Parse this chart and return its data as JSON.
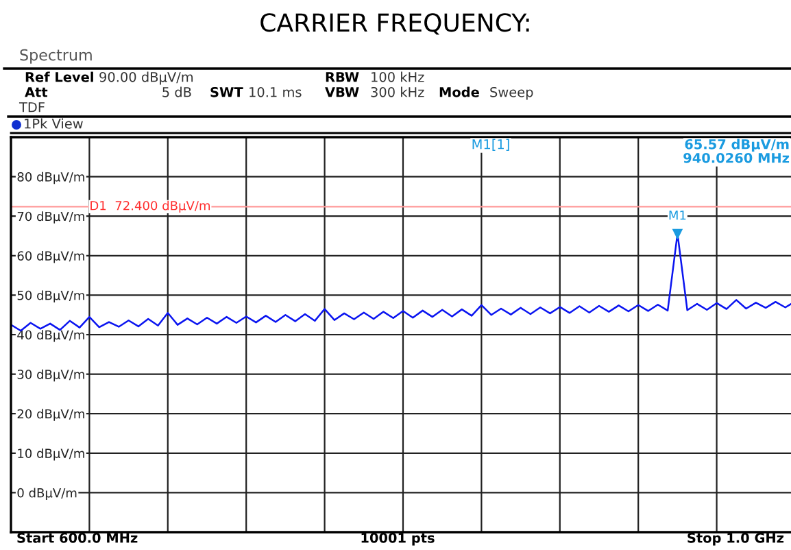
{
  "chart_data": {
    "type": "line",
    "title": "CARRIER FREQUENCY:",
    "annotations": [
      "Spectrum",
      "Ref Level",
      "90.00 dBµV/m",
      "Att",
      "5 dB",
      "SWT",
      "10.1 ms",
      "RBW",
      "100 kHz",
      "VBW",
      "300 kHz",
      "Mode",
      "Sweep",
      "TDF",
      "1Pk View",
      "M1[1]",
      "65.57 dBµV/m",
      "940.0260 MHz",
      "Start 600.0 MHz",
      "10001 pts",
      "Stop 1.0 GHz",
      {
        "text": "M1",
        "y": 65.57
      }
    ],
    "categories": [
      null,
      null,
      null,
      null,
      null,
      null,
      null,
      null,
      null,
      null,
      null,
      null,
      null,
      null,
      null,
      null,
      null,
      null,
      null,
      null,
      null,
      null,
      null,
      null,
      null,
      null,
      null,
      null,
      null,
      null,
      null,
      null,
      null,
      null,
      null,
      null,
      null,
      null,
      null,
      null,
      null,
      null,
      null,
      null,
      null,
      null,
      null,
      null,
      null,
      null,
      null,
      null,
      null,
      null,
      null,
      null,
      null,
      null,
      null,
      null,
      null,
      null,
      null,
      null,
      null,
      null,
      null,
      null,
      null,
      null,
      null,
      null,
      null,
      null,
      null,
      null,
      null,
      null,
      null,
      null,
      null
    ],
    "series": [
      {
        "color": "#0a14f0",
        "values": [
          42.5,
          41.0,
          43.0,
          41.5,
          42.8,
          41.2,
          43.5,
          41.8,
          44.5,
          41.9,
          43.2,
          42.0,
          43.6,
          42.1,
          44.0,
          42.3,
          45.5,
          42.5,
          44.1,
          42.6,
          44.3,
          42.8,
          44.5,
          43.0,
          44.6,
          43.1,
          44.8,
          43.2,
          45.0,
          43.4,
          45.2,
          43.5,
          46.5,
          43.7,
          45.4,
          43.9,
          45.6,
          44.0,
          45.8,
          44.2,
          46.0,
          44.3,
          46.1,
          44.5,
          46.3,
          44.6,
          46.4,
          44.8,
          47.5,
          45.0,
          46.6,
          45.1,
          46.8,
          45.2,
          46.9,
          45.4,
          47.0,
          45.5,
          47.2,
          45.6,
          47.3,
          45.8,
          47.4,
          45.9,
          47.5,
          46.0,
          47.6,
          46.1,
          65.57,
          46.2,
          47.8,
          46.3,
          48.0,
          46.5,
          48.8,
          46.6,
          48.1,
          46.8,
          48.3,
          46.9,
          48.4
        ]
      }
    ],
    "ylim": [
      -10,
      90
    ],
    "yticks": [
      {
        "value": 0,
        "label": "0 dBµV/m"
      },
      {
        "value": 10,
        "label": "10 dBµV/m"
      },
      {
        "value": 20,
        "label": "20 dBµV/m"
      },
      {
        "value": 30,
        "label": "30 dBµV/m"
      },
      {
        "value": 40,
        "label": "40 dBµV/m"
      },
      {
        "value": 50,
        "label": "50 dBµV/m"
      },
      {
        "value": 60,
        "label": "60 dBµV/m"
      },
      {
        "value": 70,
        "label": "70 dBµV/m"
      },
      {
        "value": 80,
        "label": "80 dBµV/m"
      }
    ],
    "ref_lines": [
      {
        "axis": "y",
        "value": 72.4,
        "label": "D1  72.400 dBµV/m",
        "color": "#ff9999"
      }
    ],
    "grid": true,
    "legend": false
  }
}
